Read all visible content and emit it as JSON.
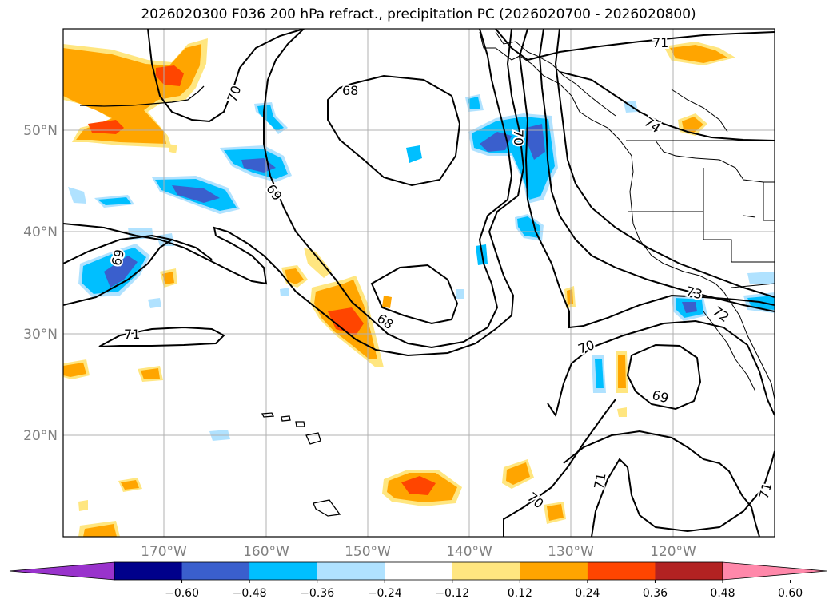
{
  "title": "2026020300 F036 200 hPa refract., precipitation PC (2026020700 - 2026020800)",
  "lat_labels": [
    "50°N",
    "40°N",
    "30°N",
    "20°N"
  ],
  "lon_labels": [
    "170°W",
    "160°W",
    "150°W",
    "140°W",
    "130°W",
    "120°W"
  ],
  "contour_labels": [
    "71",
    "70",
    "68",
    "74",
    "69",
    "69",
    "71",
    "68",
    "70",
    "73",
    "72",
    "70",
    "69",
    "70",
    "71",
    "71"
  ],
  "colorbar": {
    "ticks": [
      "−0.60",
      "−0.48",
      "−0.36",
      "−0.24",
      "−0.12",
      "0.12",
      "0.24",
      "0.36",
      "0.48",
      "0.60"
    ],
    "colors": [
      "#9933cc",
      "#00008b",
      "#3a5fcd",
      "#00bfff",
      "#b0e2ff",
      "#ffffff",
      "#ffe680",
      "#ffa500",
      "#ff4500",
      "#b22222",
      "#ff88aa"
    ]
  }
}
